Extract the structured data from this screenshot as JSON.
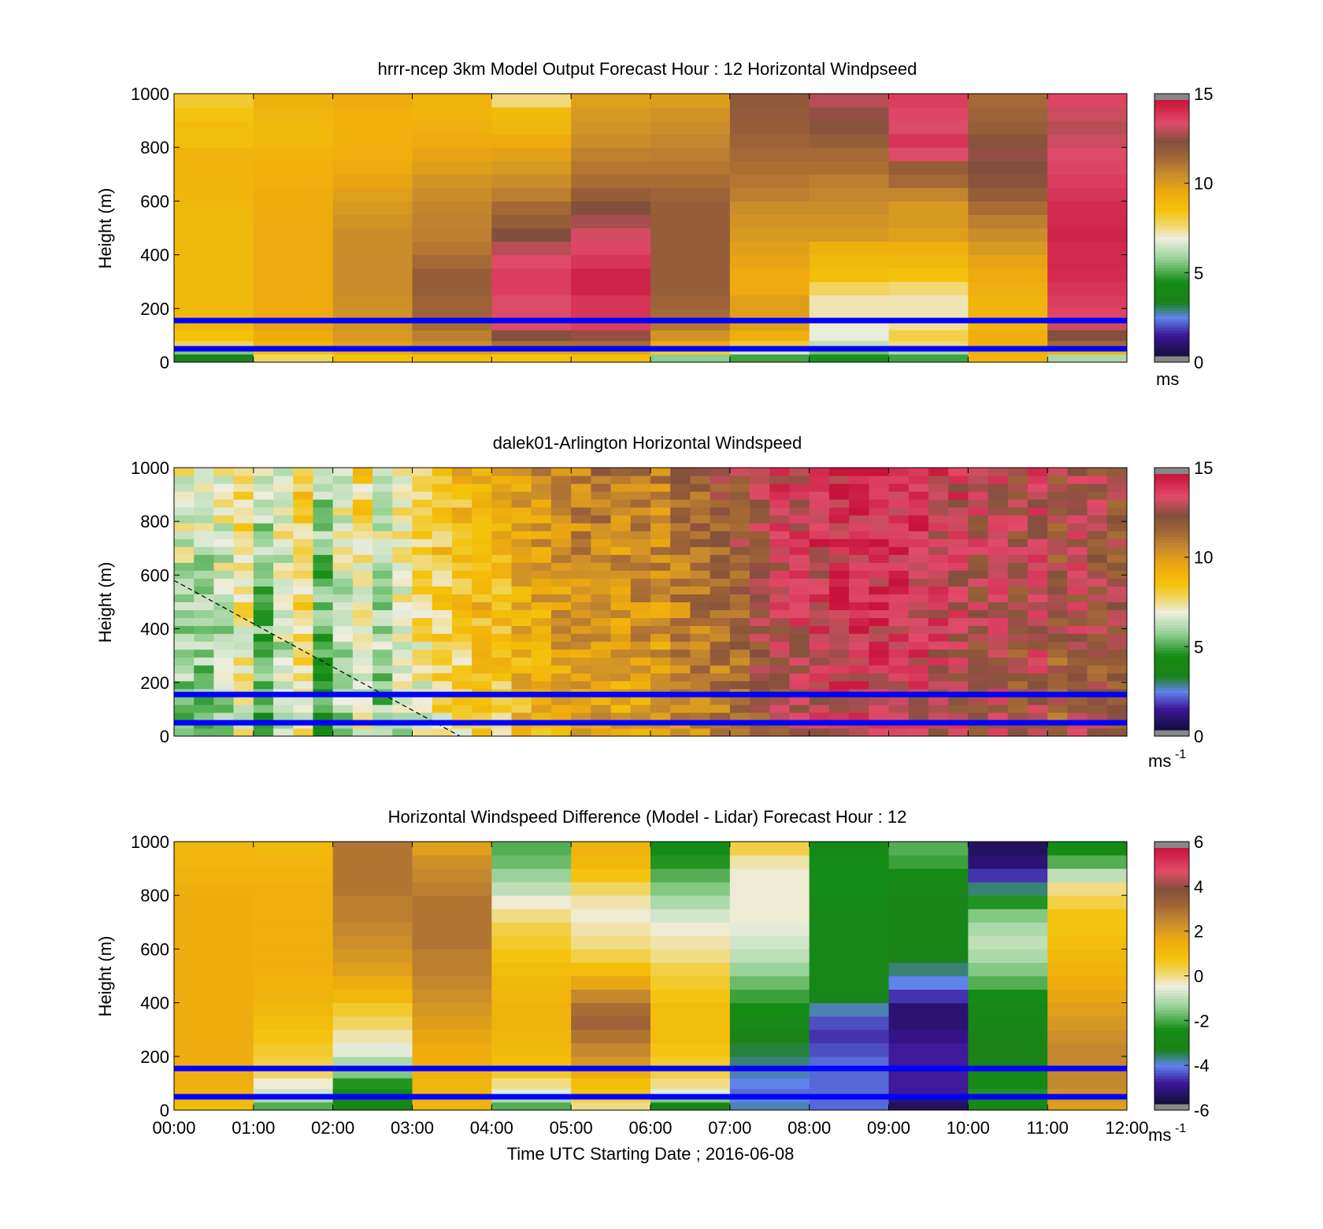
{
  "figure": {
    "xlabel": "Time UTC  Starting Date ; 2016-06-08"
  },
  "chart_data": [
    {
      "type": "heatmap",
      "title": "hrrr-ncep 3km Model Output   Forecast Hour : 12 Horizontal Windpseed",
      "ylabel": "Height (m)",
      "x_ticks": [
        "",
        "",
        "",
        "",
        "",
        "",
        "",
        "",
        "",
        "",
        "",
        "",
        ""
      ],
      "y_ticks": [
        "0",
        "200",
        "400",
        "600",
        "800",
        "1000"
      ],
      "xlim": [
        0,
        12
      ],
      "ylim": [
        0,
        1000
      ],
      "reference_lines_m": [
        155,
        50
      ],
      "colorbar": {
        "range": [
          0,
          15
        ],
        "ticks": [
          "0",
          "5",
          "10",
          "15"
        ],
        "unit_label": "ms",
        "unit_superscript": ""
      },
      "heights_m": [
        0,
        30,
        50,
        80,
        120,
        160,
        200,
        250,
        300,
        350,
        400,
        450,
        500,
        550,
        600,
        650,
        700,
        750,
        800,
        850,
        900,
        950,
        1000
      ],
      "time_bins": [
        [
          3.4,
          5.5,
          7.8,
          8.6,
          9.0,
          9.0,
          9.0,
          9.0,
          9.0,
          9.0,
          9.0,
          9.0,
          9.0,
          9.0,
          9.2,
          9.2,
          9.2,
          9.2,
          8.8,
          8.8,
          8.5,
          8.2
        ],
        [
          7.8,
          8.6,
          9.2,
          9.5,
          9.8,
          9.6,
          9.6,
          9.6,
          9.6,
          9.6,
          9.6,
          9.6,
          9.5,
          9.5,
          9.5,
          9.4,
          9.3,
          9.2,
          9.0,
          9.0,
          9.1,
          9.3
        ],
        [
          8.6,
          9.5,
          10.0,
          10.2,
          10.4,
          10.4,
          10.5,
          10.6,
          10.6,
          10.6,
          10.6,
          10.6,
          10.4,
          10.2,
          10.0,
          9.8,
          9.6,
          9.4,
          9.3,
          9.3,
          9.3,
          9.5
        ],
        [
          8.8,
          10.0,
          10.6,
          11.0,
          11.5,
          11.8,
          11.8,
          12.0,
          12.0,
          11.6,
          11.2,
          11.0,
          10.9,
          10.8,
          10.6,
          10.4,
          10.0,
          9.8,
          9.6,
          9.4,
          9.2,
          9.2
        ],
        [
          8.5,
          9.8,
          11.4,
          12.6,
          13.6,
          13.6,
          13.6,
          14.0,
          14.0,
          13.7,
          13.2,
          12.6,
          12.0,
          11.6,
          11.0,
          10.6,
          10.2,
          9.9,
          9.6,
          9.1,
          8.9,
          7.6
        ],
        [
          8.8,
          9.8,
          11.5,
          12.8,
          14.0,
          14.2,
          14.2,
          14.6,
          14.6,
          14.2,
          13.8,
          13.5,
          13.0,
          12.6,
          12.0,
          11.5,
          11.2,
          10.9,
          10.6,
          10.4,
          10.2,
          10.0
        ],
        [
          5.6,
          8.2,
          9.6,
          10.4,
          11.2,
          11.6,
          11.8,
          12.0,
          12.0,
          12.0,
          12.0,
          12.0,
          12.0,
          12.0,
          11.8,
          11.5,
          11.2,
          11.0,
          10.8,
          10.6,
          10.4,
          10.1
        ],
        [
          4.8,
          6.6,
          8.2,
          9.4,
          10.0,
          10.0,
          10.0,
          9.6,
          9.6,
          9.8,
          10.0,
          10.2,
          10.4,
          10.6,
          11.0,
          11.2,
          11.4,
          11.6,
          11.8,
          12.0,
          12.1,
          12.2
        ],
        [
          4.4,
          5.4,
          6.2,
          6.8,
          7.0,
          7.2,
          7.2,
          7.8,
          8.8,
          9.0,
          9.4,
          10.2,
          10.4,
          10.6,
          10.8,
          11.0,
          11.4,
          11.6,
          12.0,
          12.4,
          12.8,
          13.2
        ],
        [
          4.8,
          6.0,
          7.6,
          8.0,
          7.4,
          7.2,
          7.2,
          7.6,
          8.6,
          9.0,
          9.4,
          10.0,
          10.2,
          10.2,
          10.8,
          11.6,
          12.0,
          13.6,
          14.2,
          13.6,
          13.8,
          14.0
        ],
        [
          9.2,
          9.4,
          9.4,
          9.4,
          9.2,
          9.2,
          9.2,
          9.4,
          9.6,
          9.8,
          10.2,
          10.6,
          11.0,
          11.5,
          12.0,
          12.4,
          12.6,
          12.8,
          12.4,
          12.0,
          11.8,
          11.6
        ],
        [
          6.0,
          9.0,
          11.6,
          12.6,
          13.4,
          13.8,
          14.0,
          14.2,
          14.4,
          14.5,
          14.5,
          14.6,
          14.5,
          14.4,
          14.2,
          14.0,
          13.8,
          13.6,
          13.4,
          13.2,
          13.4,
          13.8
        ]
      ]
    },
    {
      "type": "heatmap",
      "title": "dalek01-Arlington  Horizontal Windspeed",
      "ylabel": "Height (m)",
      "x_ticks": [
        "",
        "",
        "",
        "",
        "",
        "",
        "",
        "",
        "",
        "",
        "",
        "",
        ""
      ],
      "y_ticks": [
        "0",
        "200",
        "400",
        "600",
        "800",
        "1000"
      ],
      "xlim": [
        0,
        12
      ],
      "ylim": [
        0,
        1000
      ],
      "reference_lines_m": [
        155,
        50
      ],
      "dashed_line_points": [
        [
          0,
          580
        ],
        [
          3.6,
          0
        ]
      ],
      "colorbar": {
        "range": [
          0,
          15
        ],
        "ticks": [
          "0",
          "5",
          "10",
          "15"
        ],
        "unit_label": "ms",
        "unit_superscript": "-1"
      },
      "column_means": [
        6.2,
        6.0,
        6.4,
        7.6,
        5.5,
        6.5,
        7.8,
        5.2,
        6.4,
        7.4,
        6.2,
        7.0,
        7.6,
        8.2,
        8.4,
        9.0,
        8.8,
        9.6,
        9.8,
        10.2,
        10.4,
        10.6,
        10.2,
        10.6,
        10.4,
        11.0,
        11.4,
        11.6,
        12.0,
        12.6,
        13.2,
        13.4,
        13.8,
        14.0,
        14.2,
        14.2,
        14.0,
        13.8,
        13.6,
        13.4,
        13.0,
        13.2,
        12.6,
        13.4,
        12.2,
        13.0,
        12.6,
        12.4
      ]
    },
    {
      "type": "heatmap",
      "title": "Horizontal Windspeed Difference (Model - Lidar) Forecast Hour : 12",
      "ylabel": "Height (m)",
      "x_ticks": [
        "00:00",
        "01:00",
        "02:00",
        "03:00",
        "04:00",
        "05:00",
        "06:00",
        "07:00",
        "08:00",
        "09:00",
        "10:00",
        "11:00",
        "12:00"
      ],
      "y_ticks": [
        "0",
        "200",
        "400",
        "600",
        "800",
        "1000"
      ],
      "xlim": [
        0,
        12
      ],
      "ylim": [
        0,
        1000
      ],
      "reference_lines_m": [
        155,
        50
      ],
      "colorbar": {
        "range": [
          -6,
          6
        ],
        "ticks": [
          "-6",
          "-4",
          "-2",
          "0",
          "2",
          "4",
          "6"
        ],
        "unit_label": "ms",
        "unit_superscript": "-1"
      },
      "heights_m": [
        0,
        30,
        50,
        80,
        120,
        160,
        200,
        250,
        300,
        350,
        400,
        450,
        500,
        550,
        600,
        650,
        700,
        750,
        800,
        850,
        900,
        950,
        1000
      ],
      "time_bins": [
        [
          1.0,
          1.2,
          1.3,
          1.5,
          1.5,
          1.6,
          1.6,
          1.6,
          1.6,
          1.6,
          1.6,
          1.6,
          1.6,
          1.6,
          1.6,
          1.6,
          1.6,
          1.6,
          1.5,
          1.4,
          1.3,
          1.3
        ],
        [
          -2.0,
          -1.2,
          -0.8,
          -0.4,
          0.2,
          0.4,
          0.6,
          0.8,
          1.0,
          1.2,
          1.4,
          1.4,
          1.5,
          1.5,
          1.5,
          1.5,
          1.5,
          1.5,
          1.5,
          1.4,
          1.3,
          1.2
        ],
        [
          -3.0,
          -3.2,
          -2.8,
          -2.4,
          -1.6,
          -1.2,
          -0.6,
          -0.2,
          0.2,
          0.6,
          1.2,
          1.6,
          2.0,
          2.2,
          2.4,
          2.6,
          2.8,
          2.8,
          3.0,
          3.0,
          3.0,
          3.0
        ],
        [
          1.4,
          1.4,
          1.3,
          1.3,
          1.4,
          1.5,
          1.6,
          1.8,
          2.0,
          2.2,
          2.4,
          2.6,
          2.8,
          2.8,
          3.0,
          3.0,
          3.0,
          3.0,
          2.8,
          2.6,
          2.4,
          2.0
        ],
        [
          -2.0,
          -1.2,
          -0.6,
          0.0,
          0.6,
          1.0,
          1.2,
          1.3,
          1.4,
          1.4,
          1.3,
          1.2,
          1.0,
          0.8,
          0.6,
          0.4,
          0.0,
          -0.4,
          -1.0,
          -1.4,
          -1.8,
          -2.0
        ],
        [
          0.0,
          0.4,
          0.8,
          1.0,
          1.6,
          2.2,
          2.6,
          3.0,
          3.4,
          3.2,
          2.6,
          1.8,
          1.0,
          0.4,
          0.0,
          -0.2,
          -0.4,
          -0.2,
          0.2,
          0.8,
          1.2,
          1.4
        ],
        [
          -3.0,
          -1.6,
          -0.6,
          0.0,
          0.4,
          0.6,
          0.8,
          1.0,
          1.0,
          1.0,
          0.8,
          0.6,
          0.4,
          0.0,
          -0.2,
          -0.4,
          -0.8,
          -1.2,
          -1.6,
          -2.0,
          -2.4,
          -2.6
        ],
        [
          -4.0,
          -4.2,
          -4.4,
          -4.2,
          -4.0,
          -3.8,
          -3.6,
          -3.4,
          -3.0,
          -2.6,
          -2.2,
          -1.8,
          -1.4,
          -1.0,
          -0.8,
          -0.6,
          -0.4,
          -0.4,
          -0.4,
          -0.4,
          -0.2,
          0.4
        ],
        [
          -4.4,
          -4.4,
          -4.4,
          -4.4,
          -4.4,
          -4.4,
          -4.6,
          -4.8,
          -4.6,
          -4.0,
          -3.2,
          -3.0,
          -3.0,
          -3.0,
          -3.0,
          -3.0,
          -3.0,
          -2.8,
          -2.6,
          -2.6,
          -2.6,
          -2.8
        ],
        [
          -5.6,
          -5.4,
          -5.0,
          -5.0,
          -5.0,
          -5.0,
          -5.0,
          -5.2,
          -5.4,
          -5.4,
          -4.8,
          -4.2,
          -3.8,
          -3.4,
          -3.2,
          -3.2,
          -3.2,
          -3.2,
          -3.0,
          -2.6,
          -2.2,
          -2.0
        ],
        [
          -3.0,
          -2.6,
          -2.4,
          -2.8,
          -3.0,
          -3.2,
          -3.4,
          -3.4,
          -3.2,
          -3.0,
          -2.6,
          -2.0,
          -1.6,
          -1.2,
          -1.0,
          -1.2,
          -1.6,
          -2.4,
          -3.8,
          -4.8,
          -5.4,
          -5.6
        ],
        [
          2.0,
          2.2,
          2.4,
          2.6,
          2.6,
          2.6,
          2.6,
          2.4,
          2.2,
          2.0,
          1.8,
          1.6,
          1.4,
          1.2,
          1.0,
          0.8,
          0.8,
          0.4,
          0.0,
          -1.0,
          -2.0,
          -2.6
        ]
      ]
    }
  ]
}
